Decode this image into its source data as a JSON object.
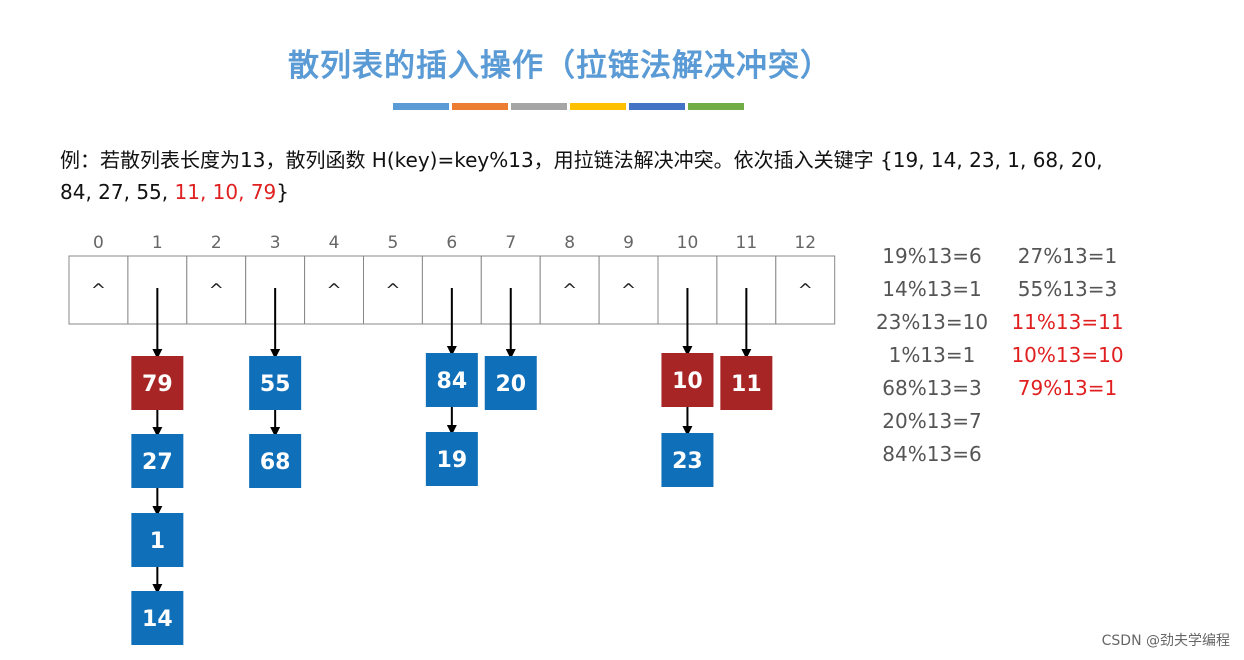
{
  "title": "散列表的插入操作（拉链法解决冲突）",
  "color_bar": [
    "#5b9bd5",
    "#ed7d31",
    "#a5a5a5",
    "#ffc000",
    "#4472c4",
    "#70ad47"
  ],
  "example": {
    "text": "例：若散列表长度为13，散列函数 H(key)=key%13，用拉链法解决冲突。依次插入关键字 {19, 14, 23, 1, 68, 20, 84, 27, 55, ",
    "red_text": "11, 10, 79",
    "end_text": "}"
  },
  "table": {
    "indices": [
      "0",
      "1",
      "2",
      "3",
      "4",
      "5",
      "6",
      "7",
      "8",
      "9",
      "10",
      "11",
      "12"
    ],
    "empty_marker": "^",
    "empty_slots": [
      0,
      2,
      4,
      5,
      8,
      9,
      12
    ]
  },
  "chains": [
    {
      "slot": 1,
      "nodes": [
        {
          "key": "79",
          "color": "#a82525"
        },
        {
          "key": "27",
          "color": "#0f6fb8"
        },
        {
          "key": "1",
          "color": "#0f6fb8"
        },
        {
          "key": "14",
          "color": "#0f6fb8"
        }
      ]
    },
    {
      "slot": 3,
      "nodes": [
        {
          "key": "55",
          "color": "#0f6fb8"
        },
        {
          "key": "68",
          "color": "#0f6fb8"
        }
      ]
    },
    {
      "slot": 6,
      "nodes": [
        {
          "key": "84",
          "color": "#0f6fb8"
        },
        {
          "key": "19",
          "color": "#0f6fb8"
        }
      ]
    },
    {
      "slot": 7,
      "nodes": [
        {
          "key": "20",
          "color": "#0f6fb8"
        }
      ]
    },
    {
      "slot": 10,
      "nodes": [
        {
          "key": "10",
          "color": "#a82525"
        },
        {
          "key": "23",
          "color": "#0f6fb8"
        }
      ]
    },
    {
      "slot": 11,
      "nodes": [
        {
          "key": "11",
          "color": "#a82525"
        }
      ]
    }
  ],
  "mods_left": [
    "19%13=6",
    "14%13=1",
    "23%13=10",
    "1%13=1",
    "68%13=3",
    "20%13=7",
    "84%13=6"
  ],
  "mods_right": [
    {
      "text": "27%13=1",
      "color": "#555555"
    },
    {
      "text": "55%13=3",
      "color": "#555555"
    },
    {
      "text": "11%13=11",
      "color": "#e02020"
    },
    {
      "text": "10%13=10",
      "color": "#e02020"
    },
    {
      "text": "79%13=1",
      "color": "#e02020"
    }
  ],
  "watermark": "CSDN @劲夫学编程"
}
